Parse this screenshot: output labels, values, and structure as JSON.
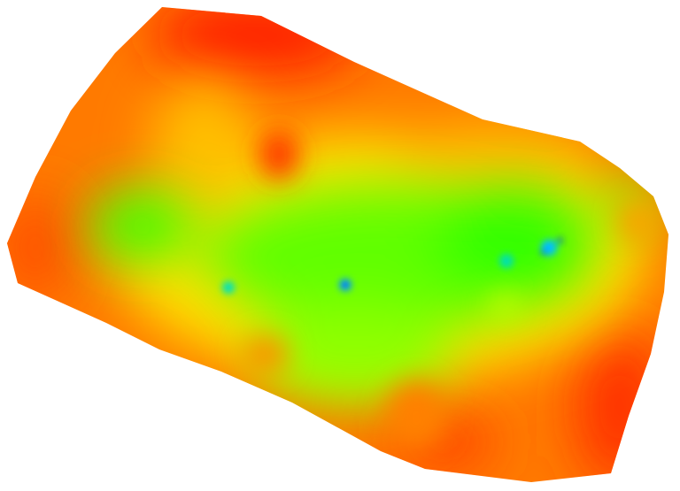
{
  "map": {
    "type": "raster-heatmap",
    "colormap": [
      "#0000ff",
      "#00e0ff",
      "#00ff00",
      "#80ff00",
      "#ffff00",
      "#ffa500",
      "#ff5000",
      "#ff1a00"
    ],
    "colors": {
      "background": "#ffffff",
      "high": "#ff2000",
      "upper": "#ff8000",
      "mid": "#ffff00",
      "low": "#40ff00",
      "lowest": "#0020ff"
    }
  }
}
